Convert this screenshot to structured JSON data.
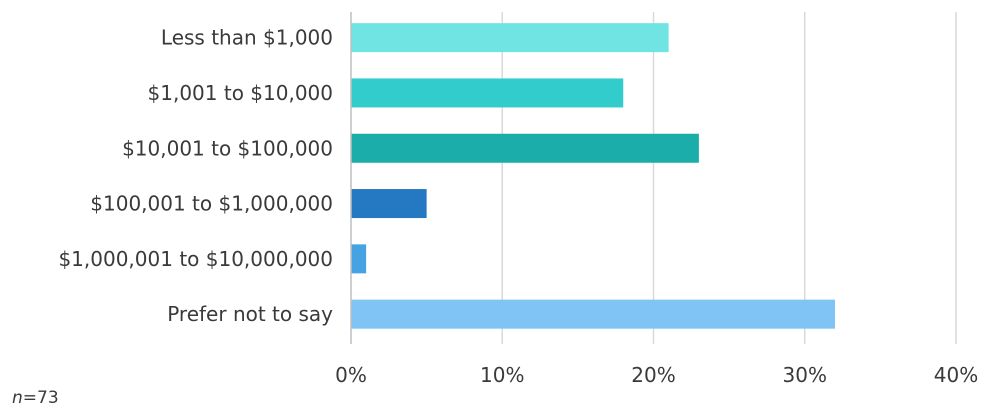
{
  "chart_data": {
    "type": "bar",
    "orientation": "horizontal",
    "categories": [
      "Less than $1,000",
      "$1,001 to $10,000",
      "$10,001 to $100,000",
      "$100,001 to $1,000,000",
      "$1,000,001 to $10,000,000",
      "Prefer not to say"
    ],
    "values": [
      21,
      18,
      23,
      5,
      1,
      32
    ],
    "colors": [
      "#70e4e2",
      "#33cccd",
      "#1aadaa",
      "#2479c2",
      "#46a3e3",
      "#80c4f5"
    ],
    "xlim": [
      0,
      40
    ],
    "xticks": [
      0,
      10,
      20,
      30,
      40
    ],
    "tick_labels": [
      "0%",
      "10%",
      "20%",
      "30%",
      "40%"
    ],
    "grid": true
  },
  "note": {
    "n_label": "n",
    "n_value": "=73"
  }
}
